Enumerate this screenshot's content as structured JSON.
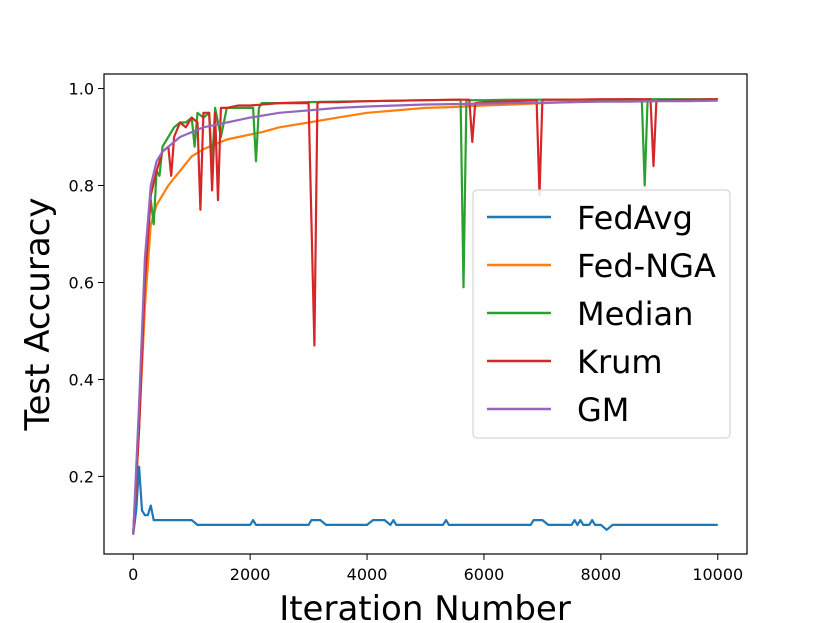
{
  "chart_data": {
    "type": "line",
    "title": "",
    "xlabel": "Iteration Number",
    "ylabel": "Test Accuracy",
    "xlim": [
      -500,
      10500
    ],
    "ylim": [
      0.04,
      1.03
    ],
    "xticks": [
      0,
      2000,
      4000,
      6000,
      8000,
      10000
    ],
    "xtick_labels": [
      "0",
      "2000",
      "4000",
      "6000",
      "8000",
      "10000"
    ],
    "yticks": [
      0.2,
      0.4,
      0.6,
      0.8,
      1.0
    ],
    "ytick_labels": [
      "0.2",
      "0.4",
      "0.6",
      "0.8",
      "1.0"
    ],
    "grid": false,
    "legend_position": "center-right",
    "series": [
      {
        "name": "FedAvg",
        "color": "#1f77b4",
        "x": [
          0,
          50,
          100,
          150,
          200,
          250,
          300,
          350,
          400,
          500,
          600,
          700,
          800,
          900,
          1000,
          1100,
          1150,
          1200,
          1300,
          1400,
          1500,
          1600,
          1700,
          1800,
          1900,
          2000,
          2050,
          2100,
          2200,
          2300,
          2400,
          2500,
          2600,
          2700,
          2800,
          2900,
          3000,
          3050,
          3100,
          3200,
          3300,
          3400,
          3500,
          3600,
          3700,
          3800,
          3900,
          4000,
          4100,
          4200,
          4300,
          4400,
          4450,
          4500,
          4600,
          4700,
          4800,
          4900,
          5000,
          5100,
          5200,
          5300,
          5350,
          5400,
          5500,
          5600,
          5700,
          5800,
          5900,
          6000,
          6200,
          6400,
          6600,
          6800,
          6850,
          7000,
          7100,
          7200,
          7300,
          7400,
          7500,
          7550,
          7600,
          7650,
          7700,
          7800,
          7850,
          7900,
          8000,
          8100,
          8200,
          8300,
          8400,
          8500,
          8600,
          8700,
          8800,
          8900,
          9000,
          9100,
          9200,
          9300,
          9400,
          9500,
          9600,
          9700,
          9800,
          9900,
          10000
        ],
        "values": [
          0.08,
          0.13,
          0.22,
          0.13,
          0.12,
          0.12,
          0.14,
          0.11,
          0.11,
          0.11,
          0.11,
          0.11,
          0.11,
          0.11,
          0.11,
          0.1,
          0.1,
          0.1,
          0.1,
          0.1,
          0.1,
          0.1,
          0.1,
          0.1,
          0.1,
          0.1,
          0.11,
          0.1,
          0.1,
          0.1,
          0.1,
          0.1,
          0.1,
          0.1,
          0.1,
          0.1,
          0.1,
          0.11,
          0.11,
          0.11,
          0.1,
          0.1,
          0.1,
          0.1,
          0.1,
          0.1,
          0.1,
          0.1,
          0.11,
          0.11,
          0.11,
          0.1,
          0.11,
          0.1,
          0.1,
          0.1,
          0.1,
          0.1,
          0.1,
          0.1,
          0.1,
          0.1,
          0.11,
          0.1,
          0.1,
          0.1,
          0.1,
          0.1,
          0.1,
          0.1,
          0.1,
          0.1,
          0.1,
          0.1,
          0.11,
          0.11,
          0.1,
          0.1,
          0.1,
          0.1,
          0.1,
          0.11,
          0.1,
          0.11,
          0.1,
          0.1,
          0.11,
          0.1,
          0.1,
          0.09,
          0.1,
          0.1,
          0.1,
          0.1,
          0.1,
          0.1,
          0.1,
          0.1,
          0.1,
          0.1,
          0.1,
          0.1,
          0.1,
          0.1,
          0.1,
          0.1,
          0.1,
          0.1,
          0.1
        ]
      },
      {
        "name": "Fed-NGA",
        "color": "#ff7f0e",
        "x": [
          0,
          100,
          200,
          300,
          400,
          500,
          600,
          700,
          800,
          900,
          1000,
          1200,
          1400,
          1600,
          1800,
          2000,
          2200,
          2500,
          3000,
          3500,
          4000,
          4500,
          5000,
          5500,
          6000,
          6500,
          7000,
          7500,
          8000,
          8500,
          9000,
          9500,
          10000
        ],
        "values": [
          0.08,
          0.3,
          0.55,
          0.72,
          0.76,
          0.78,
          0.8,
          0.815,
          0.83,
          0.845,
          0.86,
          0.875,
          0.885,
          0.895,
          0.9,
          0.905,
          0.91,
          0.92,
          0.93,
          0.94,
          0.95,
          0.955,
          0.96,
          0.962,
          0.965,
          0.967,
          0.97,
          0.972,
          0.974,
          0.975,
          0.976,
          0.977,
          0.978
        ]
      },
      {
        "name": "Median",
        "color": "#2ca02c",
        "x": [
          0,
          100,
          200,
          250,
          300,
          350,
          400,
          450,
          500,
          600,
          700,
          800,
          900,
          1000,
          1050,
          1100,
          1200,
          1300,
          1350,
          1400,
          1500,
          1600,
          1800,
          2000,
          2050,
          2100,
          2150,
          2200,
          2500,
          3000,
          3500,
          4000,
          4500,
          5000,
          5600,
          5650,
          5700,
          6000,
          6500,
          7000,
          7500,
          8000,
          8500,
          8700,
          8750,
          8800,
          9000,
          9500,
          10000
        ],
        "values": [
          0.08,
          0.3,
          0.62,
          0.7,
          0.77,
          0.72,
          0.83,
          0.82,
          0.88,
          0.9,
          0.92,
          0.93,
          0.93,
          0.94,
          0.88,
          0.95,
          0.94,
          0.95,
          0.84,
          0.96,
          0.9,
          0.96,
          0.96,
          0.96,
          0.96,
          0.85,
          0.96,
          0.97,
          0.97,
          0.972,
          0.973,
          0.974,
          0.975,
          0.976,
          0.977,
          0.59,
          0.976,
          0.976,
          0.977,
          0.977,
          0.977,
          0.977,
          0.978,
          0.978,
          0.8,
          0.978,
          0.978,
          0.978,
          0.978
        ]
      },
      {
        "name": "Krum",
        "color": "#d62728",
        "x": [
          0,
          100,
          200,
          300,
          400,
          500,
          600,
          650,
          700,
          800,
          900,
          1000,
          1100,
          1150,
          1200,
          1300,
          1350,
          1400,
          1450,
          1500,
          1600,
          1800,
          2000,
          2500,
          3000,
          3100,
          3150,
          3200,
          3500,
          4000,
          4500,
          5000,
          5500,
          5750,
          5800,
          5850,
          6000,
          6500,
          6900,
          6950,
          7000,
          7500,
          8000,
          8500,
          8850,
          8900,
          8950,
          9000,
          9500,
          10000
        ],
        "values": [
          0.08,
          0.3,
          0.6,
          0.78,
          0.83,
          0.87,
          0.88,
          0.82,
          0.9,
          0.93,
          0.92,
          0.94,
          0.93,
          0.75,
          0.95,
          0.95,
          0.79,
          0.95,
          0.77,
          0.96,
          0.96,
          0.965,
          0.965,
          0.97,
          0.97,
          0.47,
          0.97,
          0.972,
          0.972,
          0.974,
          0.975,
          0.976,
          0.977,
          0.977,
          0.89,
          0.97,
          0.972,
          0.974,
          0.976,
          0.78,
          0.977,
          0.977,
          0.978,
          0.978,
          0.978,
          0.84,
          0.975,
          0.976,
          0.977,
          0.978
        ]
      },
      {
        "name": "GM",
        "color": "#9467bd",
        "x": [
          0,
          100,
          200,
          300,
          400,
          500,
          600,
          700,
          800,
          900,
          1000,
          1200,
          1400,
          1600,
          1800,
          2000,
          2500,
          3000,
          3500,
          4000,
          4500,
          5000,
          5500,
          6000,
          6500,
          7000,
          7500,
          8000,
          8500,
          9000,
          9500,
          10000
        ],
        "values": [
          0.08,
          0.35,
          0.65,
          0.8,
          0.85,
          0.87,
          0.88,
          0.89,
          0.9,
          0.905,
          0.91,
          0.92,
          0.925,
          0.93,
          0.935,
          0.94,
          0.95,
          0.955,
          0.96,
          0.963,
          0.965,
          0.967,
          0.968,
          0.969,
          0.97,
          0.971,
          0.972,
          0.973,
          0.973,
          0.974,
          0.974,
          0.975
        ]
      }
    ]
  }
}
